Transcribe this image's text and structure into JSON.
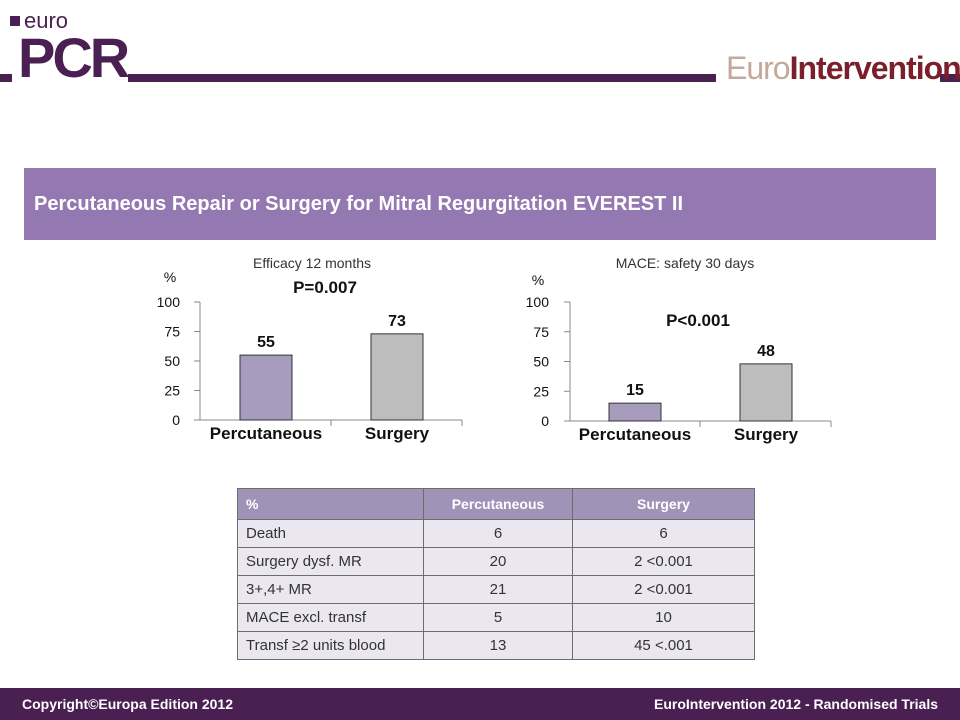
{
  "header": {
    "logo_euro": "euro",
    "logo_pcr": "PCR",
    "journal_logo_light": "Euro",
    "journal_logo_bold": "Intervention"
  },
  "title": "Percutaneous Repair or Surgery for Mitral Regurgitation EVEREST II",
  "colors": {
    "brand_purple": "#4a1f52",
    "title_band": "#9478b1",
    "percutaneous_bar": "#a79cbd",
    "surgery_bar": "#bdbdbd",
    "table_header": "#a192b7",
    "table_row": "#eae7f1"
  },
  "chart_data": [
    {
      "type": "bar",
      "title": "Efficacy 12 months",
      "ylabel": "%",
      "categories": [
        "Percutaneous",
        "Surgery"
      ],
      "values": [
        55,
        73
      ],
      "data_labels": [
        "55",
        "73"
      ],
      "annotation": "P=0.007",
      "ylim": [
        0,
        100
      ],
      "yticks": [
        "0",
        "25",
        "50",
        "75",
        "100"
      ]
    },
    {
      "type": "bar",
      "title": "MACE: safety 30 days",
      "ylabel": "%",
      "categories": [
        "Percutaneous",
        "Surgery"
      ],
      "values": [
        15,
        48
      ],
      "data_labels": [
        "15",
        "48"
      ],
      "annotation": "P<0.001",
      "ylim": [
        0,
        100
      ],
      "yticks": [
        "0",
        "25",
        "50",
        "75",
        "100"
      ]
    }
  ],
  "table": {
    "headers": [
      "%",
      "Percutaneous",
      "Surgery"
    ],
    "rows": [
      [
        "Death",
        "6",
        "6"
      ],
      [
        "Surgery dysf. MR",
        "20",
        "2 <0.001"
      ],
      [
        "3+,4+ MR",
        "21",
        "2 <0.001"
      ],
      [
        "MACE excl. transf",
        "5",
        "10"
      ],
      [
        "Transf ≥2 units blood",
        "13",
        "45 <.001"
      ]
    ]
  },
  "footer": {
    "left": "Copyright©Europa Edition 2012",
    "right": "EuroIntervention 2012 - Randomised Trials"
  }
}
